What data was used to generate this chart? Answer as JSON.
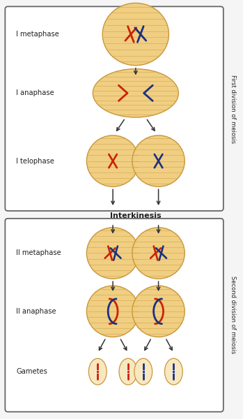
{
  "bg_color": "#f5f5f5",
  "cell_fill": "#f0ce82",
  "cell_fill2": "#f5dfa0",
  "cell_edge": "#c8973a",
  "spindle_color": "#c8973a",
  "red_chr": "#cc2200",
  "blue_chr": "#1a3080",
  "label_color": "#222222",
  "arrow_color": "#333333",
  "side_label1": "First division of meiosis",
  "side_label2": "Second division of meiosis",
  "labels": [
    "I metaphase",
    "I anaphase",
    "I telophase",
    "Interkinesis",
    "II metaphase",
    "II anaphase",
    "Gametes"
  ],
  "figsize": [
    3.49,
    6.0
  ],
  "dpi": 100
}
